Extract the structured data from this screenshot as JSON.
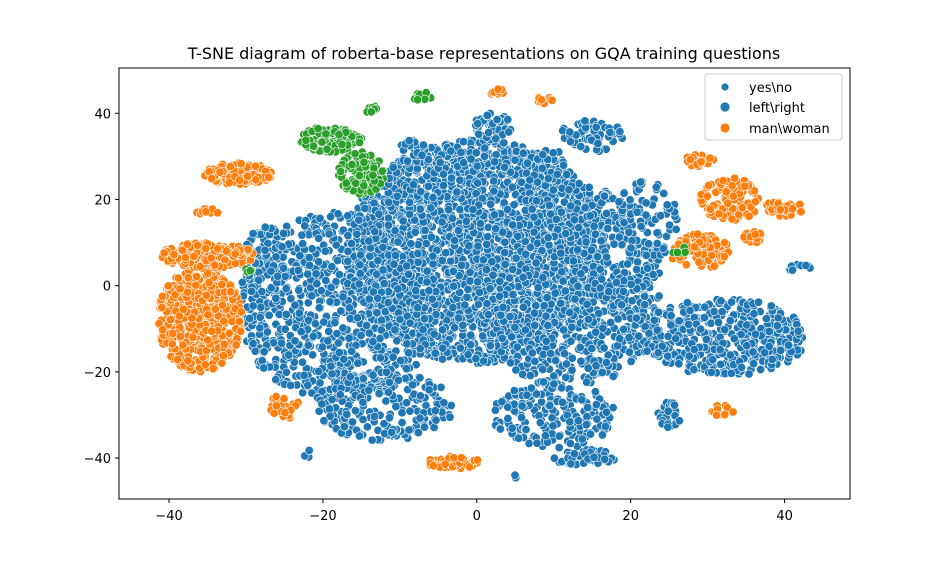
{
  "chart_data": {
    "type": "scatter",
    "title": "T-SNE diagram of roberta-base representations on GQA training questions",
    "xlabel": "",
    "ylabel": "",
    "xlim": [
      -46.5,
      48.5
    ],
    "ylim": [
      -49.5,
      50.5
    ],
    "xticks": [
      -40,
      -20,
      0,
      20,
      40
    ],
    "yticks": [
      -40,
      -20,
      0,
      20,
      40
    ],
    "grid": false,
    "legend": "top-right",
    "series": [
      {
        "name": "yes\\no",
        "color": "#1f77b4",
        "clusters": [
          {
            "cx": 0,
            "cy": 8,
            "rx": 17,
            "ry": 26,
            "n": 2400
          },
          {
            "cx": -18,
            "cy": -5,
            "rx": 13,
            "ry": 22,
            "n": 900
          },
          {
            "cx": 12,
            "cy": 0,
            "rx": 12,
            "ry": 24,
            "n": 850
          },
          {
            "cx": 32,
            "cy": -12,
            "rx": 11,
            "ry": 9,
            "n": 450
          },
          {
            "cx": -12,
            "cy": -28,
            "rx": 9,
            "ry": 8,
            "n": 200
          },
          {
            "cx": 10,
            "cy": -30,
            "rx": 8,
            "ry": 8,
            "n": 200
          },
          {
            "cx": 22,
            "cy": 15,
            "rx": 4,
            "ry": 10,
            "n": 90
          },
          {
            "cx": -8,
            "cy": 32,
            "rx": 2,
            "ry": 2,
            "n": 20
          },
          {
            "cx": 2,
            "cy": 37,
            "rx": 2.5,
            "ry": 3,
            "n": 45
          },
          {
            "cx": 15,
            "cy": 35,
            "rx": 4,
            "ry": 4,
            "n": 70
          },
          {
            "cx": 25,
            "cy": -30,
            "rx": 1.5,
            "ry": 3,
            "n": 25
          },
          {
            "cx": 14,
            "cy": -40,
            "rx": 4,
            "ry": 2,
            "n": 50
          },
          {
            "cx": 42,
            "cy": 4,
            "rx": 1.5,
            "ry": 1,
            "n": 10
          }
        ]
      },
      {
        "name": "left\\right",
        "color": "#1f77b4",
        "clusters": [
          {
            "cx": 8,
            "cy": 28,
            "rx": 5,
            "ry": 4,
            "n": 55
          },
          {
            "cx": 18,
            "cy": -5,
            "rx": 4,
            "ry": 8,
            "n": 60
          },
          {
            "cx": -27,
            "cy": 10,
            "rx": 3,
            "ry": 4,
            "n": 40
          },
          {
            "cx": 5,
            "cy": -44,
            "rx": 0.5,
            "ry": 1,
            "n": 3
          },
          {
            "cx": -22,
            "cy": -39,
            "rx": 0.5,
            "ry": 1,
            "n": 3
          }
        ]
      },
      {
        "name": "man\\woman",
        "color": "#ff7f0e",
        "clusters": [
          {
            "cx": -36,
            "cy": -8,
            "rx": 5.5,
            "ry": 12,
            "n": 560
          },
          {
            "cx": -35,
            "cy": 7,
            "rx": 6,
            "ry": 3,
            "n": 170
          },
          {
            "cx": -31,
            "cy": 26,
            "rx": 4.5,
            "ry": 2.5,
            "n": 150
          },
          {
            "cx": -35,
            "cy": 17,
            "rx": 1.5,
            "ry": 1,
            "n": 12
          },
          {
            "cx": 29,
            "cy": 29,
            "rx": 2,
            "ry": 1.5,
            "n": 25
          },
          {
            "cx": 33,
            "cy": 20,
            "rx": 4,
            "ry": 5,
            "n": 110
          },
          {
            "cx": 29,
            "cy": 8,
            "rx": 4,
            "ry": 4,
            "n": 80
          },
          {
            "cx": 40,
            "cy": 18,
            "rx": 2.5,
            "ry": 2,
            "n": 40
          },
          {
            "cx": 36,
            "cy": 11,
            "rx": 1.5,
            "ry": 1.5,
            "n": 15
          },
          {
            "cx": -25,
            "cy": -28,
            "rx": 2,
            "ry": 3,
            "n": 25
          },
          {
            "cx": -3,
            "cy": -41,
            "rx": 3.5,
            "ry": 1.5,
            "n": 40
          },
          {
            "cx": 9,
            "cy": 43,
            "rx": 1.5,
            "ry": 1,
            "n": 10
          },
          {
            "cx": 2.5,
            "cy": 45,
            "rx": 1,
            "ry": 0.7,
            "n": 8
          },
          {
            "cx": 32,
            "cy": -29,
            "rx": 1.5,
            "ry": 1.5,
            "n": 10
          }
        ]
      },
      {
        "color": "#2ca02c",
        "clusters": [
          {
            "cx": -19,
            "cy": 34,
            "rx": 4,
            "ry": 3,
            "n": 110
          },
          {
            "cx": -15,
            "cy": 26,
            "rx": 3,
            "ry": 5,
            "n": 110
          },
          {
            "cx": -7,
            "cy": 44,
            "rx": 1.5,
            "ry": 1,
            "n": 12
          },
          {
            "cx": -14,
            "cy": 41,
            "rx": 1,
            "ry": 1,
            "n": 10
          },
          {
            "cx": -30,
            "cy": 3,
            "rx": 1,
            "ry": 1,
            "n": 5
          },
          {
            "cx": 26,
            "cy": 9,
            "rx": 1.5,
            "ry": 2,
            "n": 5
          }
        ]
      }
    ]
  }
}
